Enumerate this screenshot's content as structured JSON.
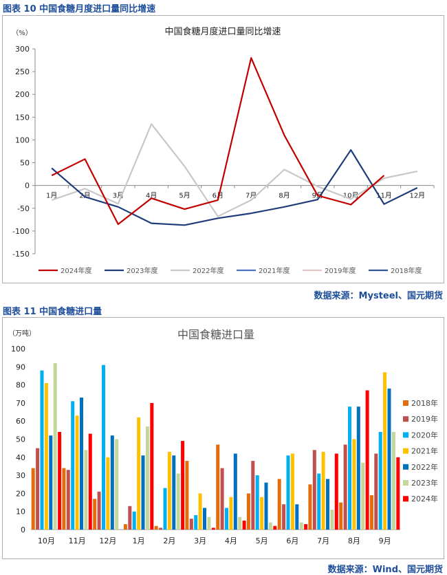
{
  "figures": [
    {
      "caption": "图表 10  中国食糖月度进口量同比增速",
      "source": "数据来源：Mysteel、国元期货"
    },
    {
      "caption": "图表 11  中国食糖进口量",
      "source": "数据来源：Wind、国元期货"
    }
  ],
  "chart_data": [
    {
      "type": "line",
      "title": "中国食糖月度进口量同比增速",
      "ylabel": "（%）",
      "xlabel": "",
      "ylim": [
        -150,
        300
      ],
      "yticks": [
        -150,
        -100,
        -50,
        0,
        50,
        100,
        150,
        200,
        250,
        300
      ],
      "categories": [
        "1月",
        "2月",
        "3月",
        "4月",
        "5月",
        "6月",
        "7月",
        "8月",
        "9月",
        "10月",
        "11月",
        "12月"
      ],
      "grid": false,
      "legend_position": "bottom",
      "series": [
        {
          "name": "2024年度",
          "color": "#c00000",
          "values": [
            22,
            58,
            -85,
            -28,
            -52,
            -32,
            280,
            110,
            -22,
            -42,
            22,
            null
          ]
        },
        {
          "name": "2023年度",
          "color": "#1f3b7a",
          "values": [
            38,
            -25,
            -47,
            -83,
            -87,
            -72,
            -61,
            -47,
            -31,
            78,
            -41,
            -5
          ]
        },
        {
          "name": "2022年度",
          "color": "#c8c8c8",
          "values": [
            -32,
            -7,
            -40,
            135,
            42,
            -68,
            -32,
            35,
            -2,
            -30,
            16,
            31
          ]
        },
        {
          "name": "2021年度",
          "color": "#4a72c4",
          "values": [
            null,
            null,
            null,
            null,
            null,
            null,
            null,
            null,
            null,
            null,
            null,
            null
          ]
        },
        {
          "name": "2019年度",
          "color": "#e3c7c7",
          "values": [
            null,
            null,
            null,
            null,
            null,
            null,
            null,
            null,
            null,
            null,
            null,
            null
          ]
        },
        {
          "name": "2018年度",
          "color": "#2f5597",
          "values": [
            null,
            null,
            null,
            null,
            null,
            null,
            null,
            null,
            null,
            null,
            null,
            null
          ]
        }
      ]
    },
    {
      "type": "bar",
      "title": "中国食糖进口量",
      "ylabel": "（万吨）",
      "xlabel": "",
      "ylim": [
        0,
        100
      ],
      "yticks": [
        0,
        10,
        20,
        30,
        40,
        50,
        60,
        70,
        80,
        90,
        100
      ],
      "categories": [
        "10月",
        "11月",
        "12月",
        "1月",
        "2月",
        "3月",
        "4月",
        "5月",
        "6月",
        "7月",
        "8月",
        "9月"
      ],
      "grid": false,
      "legend_position": "right",
      "series": [
        {
          "name": "2018年",
          "color": "#e46c0a",
          "values": [
            34,
            34,
            17,
            3,
            2,
            38,
            47,
            20,
            28,
            25,
            15,
            19
          ]
        },
        {
          "name": "2019年",
          "color": "#c0504d",
          "values": [
            45,
            33,
            21,
            13,
            1,
            6,
            34,
            38,
            14,
            44,
            47,
            42
          ]
        },
        {
          "name": "2020年",
          "color": "#00b0f0",
          "values": [
            88,
            71,
            91,
            10,
            23,
            8,
            12,
            30,
            41,
            31,
            68,
            54
          ]
        },
        {
          "name": "2021年",
          "color": "#ffc000",
          "values": [
            81,
            63,
            40,
            62,
            43,
            20,
            18,
            18,
            42,
            43,
            50,
            87
          ]
        },
        {
          "name": "2022年",
          "color": "#0070c0",
          "values": [
            52,
            73,
            52,
            41,
            41,
            12,
            42,
            26,
            14,
            28,
            68,
            78
          ]
        },
        {
          "name": "2023年",
          "color": "#c4d79b",
          "values": [
            92,
            44,
            50,
            57,
            31,
            7,
            7,
            4,
            4,
            11,
            37,
            54
          ]
        },
        {
          "name": "2024年",
          "color": "#ff0000",
          "values": [
            54,
            53,
            null,
            70,
            49,
            1,
            5,
            2,
            3,
            42,
            77,
            40
          ]
        }
      ]
    }
  ]
}
